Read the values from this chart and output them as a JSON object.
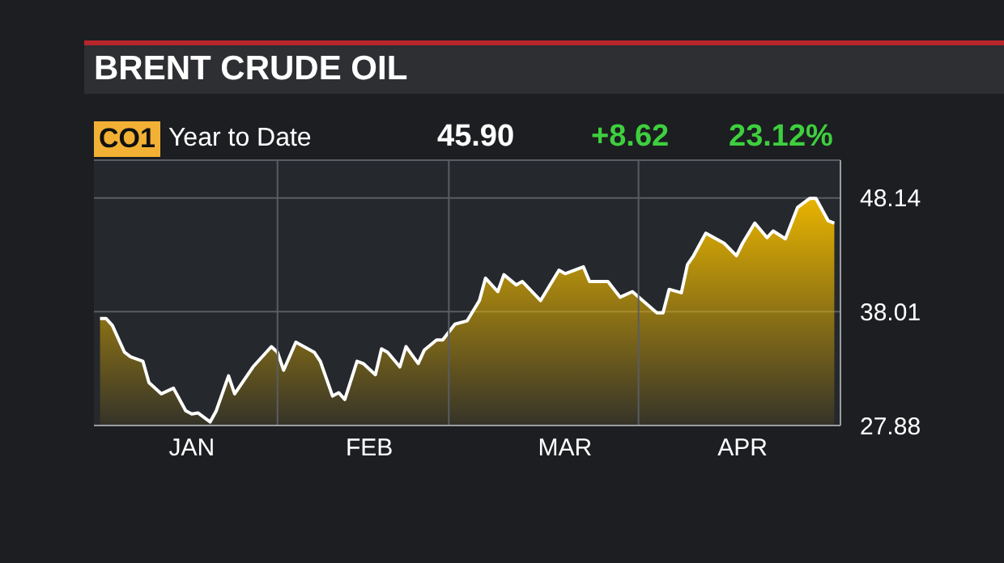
{
  "chart_data": {
    "type": "area",
    "title": "BRENT CRUDE OIL",
    "subtitle": "CO1 Year to Date",
    "annotations": [
      "45.90",
      "+8.62",
      "23.12%"
    ],
    "x": [
      "--01-03",
      "--01-04",
      "--01-05",
      "--01-07",
      "--01-08",
      "--01-10",
      "--01-11",
      "--01-13",
      "--01-15",
      "--01-17",
      "--01-18",
      "--01-19",
      "--01-21",
      "--01-22",
      "--01-24",
      "--01-25",
      "--01-28",
      "--01-31",
      "--02-01",
      "--02-02",
      "--02-04",
      "--02-07",
      "--02-08",
      "--02-10",
      "--02-11",
      "--02-12",
      "--02-14",
      "--02-15",
      "--02-17",
      "--02-18",
      "--02-19",
      "--02-21",
      "--02-22",
      "--02-24",
      "--02-25",
      "--02-27",
      "--02-28",
      "--03-02",
      "--03-04",
      "--03-06",
      "--03-07",
      "--03-09",
      "--03-10",
      "--03-12",
      "--03-13",
      "--03-16",
      "--03-19",
      "--03-20",
      "--03-23",
      "--03-24",
      "--03-27",
      "--03-29",
      "--03-31",
      "--04-04",
      "--04-05",
      "--04-06",
      "--04-08",
      "--04-09",
      "--04-10",
      "--04-12",
      "--04-15",
      "--04-17",
      "--04-18",
      "--04-20",
      "--04-22",
      "--04-23",
      "--04-25",
      "--04-27",
      "--04-29",
      "--04-30",
      "--05-02",
      "--05-03"
    ],
    "series": [
      {
        "color": "#e8b400",
        "values": [
          37.4,
          37.4,
          36.8,
          34.4,
          34.0,
          33.6,
          31.7,
          30.7,
          31.2,
          29.2,
          28.9,
          29.0,
          28.2,
          29.2,
          32.3,
          30.7,
          33.1,
          34.9,
          34.4,
          32.8,
          35.3,
          34.4,
          33.6,
          30.5,
          30.8,
          30.2,
          33.6,
          33.4,
          32.4,
          34.7,
          34.4,
          33.1,
          34.9,
          33.4,
          34.6,
          35.5,
          35.5,
          36.9,
          37.2,
          39.0,
          41.0,
          39.8,
          41.3,
          40.4,
          40.7,
          39.0,
          41.7,
          41.4,
          42.0,
          40.7,
          40.7,
          39.3,
          39.8,
          37.9,
          37.9,
          40.0,
          39.7,
          42.2,
          43.0,
          45.0,
          44.1,
          43.0,
          44.1,
          45.9,
          44.6,
          45.2,
          44.5,
          47.3,
          48.1,
          48.1,
          46.1,
          45.9
        ]
      }
    ],
    "xlim": [
      "--01-02",
      "--05-04"
    ],
    "xticks": [
      {
        "value": "--01-18",
        "label": "JAN"
      },
      {
        "value": "--02-01",
        "label": null
      },
      {
        "value": "--02-16",
        "label": "FEB"
      },
      {
        "value": "--03-01",
        "label": null
      },
      {
        "value": "--03-20",
        "label": "MAR"
      },
      {
        "value": "--04-01",
        "label": null
      },
      {
        "value": "--04-18",
        "label": "APR"
      }
    ],
    "ylim": [
      27.88,
      51.5
    ],
    "yticks": [
      27.88,
      38.01,
      48.14
    ],
    "grid": true
  }
}
